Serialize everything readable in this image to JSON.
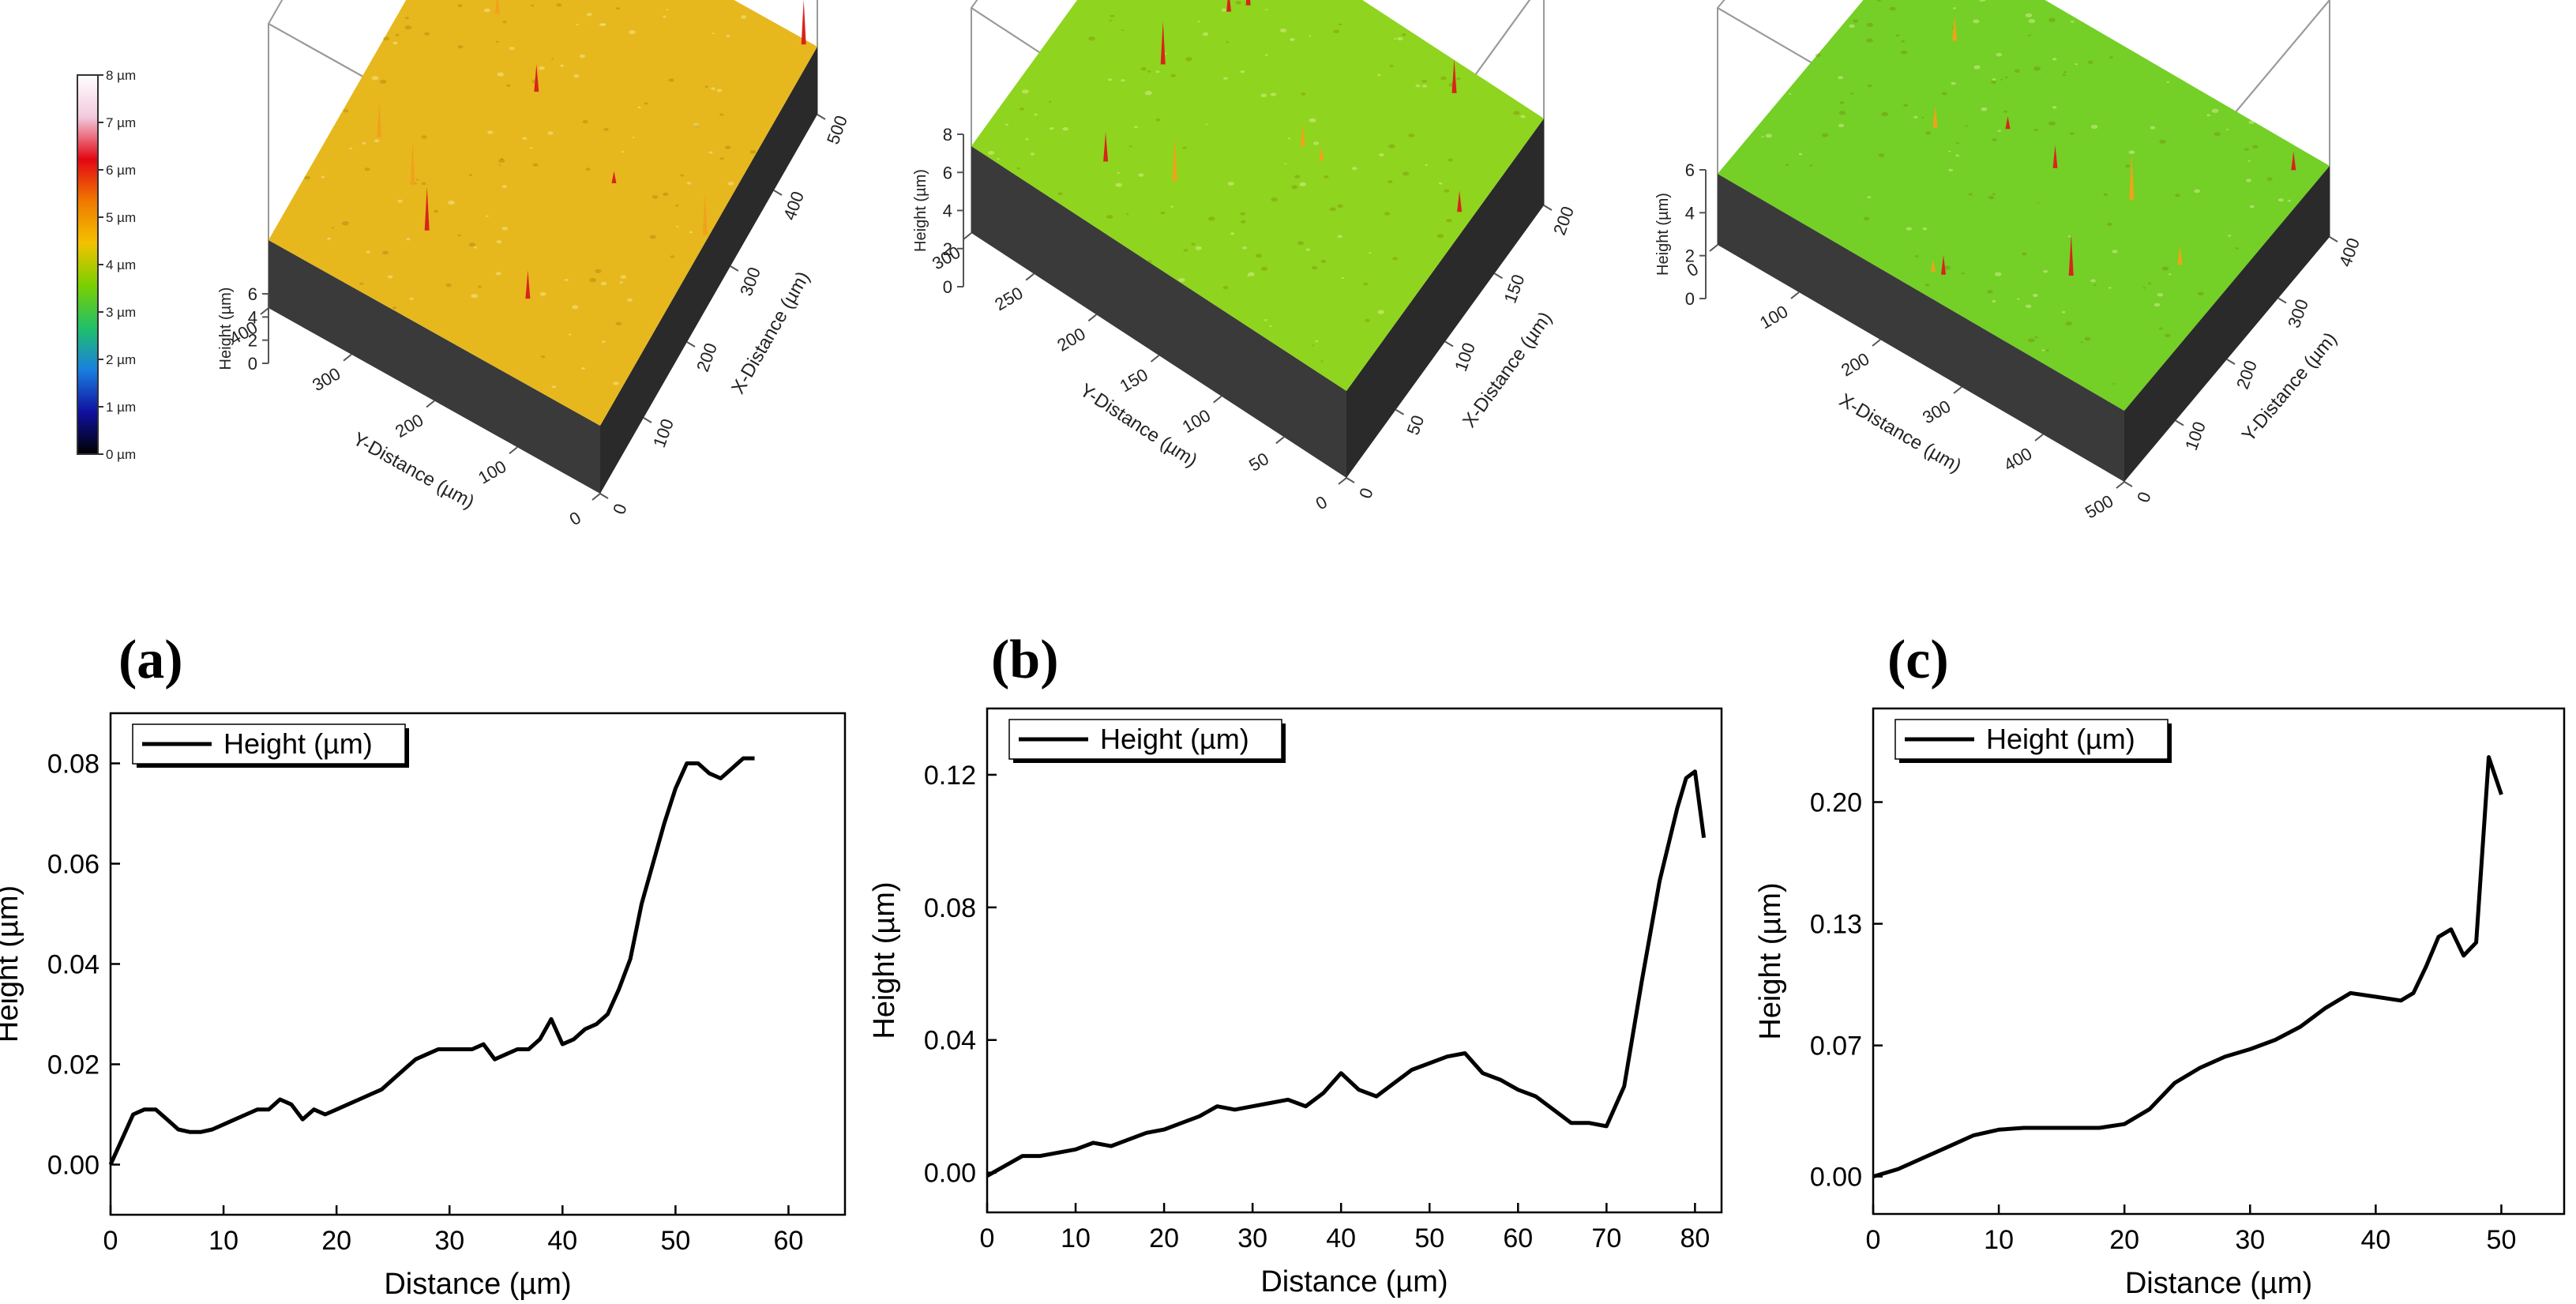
{
  "colorbar": {
    "ticks": [
      "8 µm",
      "7 µm",
      "6 µm",
      "5 µm",
      "4 µm",
      "3 µm",
      "2 µm",
      "1 µm",
      "0 µm"
    ],
    "colors": [
      "#ffffff",
      "#f2c9dc",
      "#e30613",
      "#f07a00",
      "#f2c200",
      "#7ad000",
      "#20c06a",
      "#1a7fe0",
      "#1010a0",
      "#000000"
    ]
  },
  "surfaces": [
    {
      "letter": "(a)",
      "surface_color": "#e6b81e",
      "height_label": "Height (µm)",
      "height_ticks": [
        "0",
        "2",
        "4",
        "6"
      ],
      "left_axis_label": "Y-Distance (µm)",
      "left_axis_ticks": [
        "400",
        "300",
        "200",
        "100",
        "0"
      ],
      "right_axis_label": "X-Distance (µm)",
      "right_axis_ticks": [
        "0",
        "100",
        "200",
        "300",
        "400",
        "500"
      ]
    },
    {
      "letter": "(b)",
      "surface_color": "#8fd41e",
      "height_label": "Height (µm)",
      "height_ticks": [
        "0",
        "2",
        "4",
        "6",
        "8"
      ],
      "left_axis_label": "Y-Distance (µm)",
      "left_axis_ticks": [
        "300",
        "250",
        "200",
        "150",
        "100",
        "50",
        "0"
      ],
      "right_axis_label": "X-Distance (µm)",
      "right_axis_ticks": [
        "0",
        "50",
        "100",
        "150",
        "200"
      ]
    },
    {
      "letter": "(c)",
      "surface_color": "#74cf26",
      "height_label": "Height (µm)",
      "height_ticks": [
        "0",
        "2",
        "4",
        "6"
      ],
      "left_axis_label": "X-Distance (µm)",
      "left_axis_ticks": [
        "0",
        "100",
        "200",
        "300",
        "400",
        "500"
      ],
      "right_axis_label": "Y-Distance (µm)",
      "right_axis_ticks": [
        "0",
        "100",
        "200",
        "300",
        "400"
      ]
    }
  ],
  "chart_data": [
    {
      "type": "line",
      "xlabel": "Distance (µm)",
      "ylabel": "Height (µm)",
      "xlim": [
        0,
        65
      ],
      "ylim": [
        -0.01,
        0.09
      ],
      "xticks": [
        0,
        10,
        20,
        30,
        40,
        50,
        60
      ],
      "xtick_labels": [
        "0",
        "10",
        "20",
        "30",
        "40",
        "50",
        "60"
      ],
      "yticks": [
        0.0,
        0.02,
        0.04,
        0.06,
        0.08
      ],
      "ytick_labels": [
        "0.00",
        "0.02",
        "0.04",
        "0.06",
        "0.08"
      ],
      "legend": "top-left",
      "series": [
        {
          "name": "Height (µm)",
          "x": [
            0,
            1,
            2,
            3,
            4,
            5,
            6,
            7,
            8,
            9,
            10,
            11,
            12,
            13,
            14,
            15,
            16,
            17,
            18,
            19,
            20,
            21,
            22,
            23,
            24,
            25,
            26,
            27,
            28,
            29,
            30,
            31,
            32,
            33,
            34,
            35,
            36,
            37,
            38,
            39,
            40,
            41,
            42,
            43,
            44,
            45,
            46,
            47,
            48,
            49,
            50,
            51,
            52,
            53,
            54,
            55,
            56,
            57
          ],
          "y": [
            0.0,
            0.005,
            0.01,
            0.011,
            0.011,
            0.009,
            0.007,
            0.0065,
            0.0065,
            0.007,
            0.008,
            0.009,
            0.01,
            0.011,
            0.011,
            0.013,
            0.012,
            0.009,
            0.011,
            0.01,
            0.011,
            0.012,
            0.013,
            0.014,
            0.015,
            0.017,
            0.019,
            0.021,
            0.022,
            0.023,
            0.023,
            0.023,
            0.023,
            0.024,
            0.021,
            0.022,
            0.023,
            0.023,
            0.025,
            0.029,
            0.024,
            0.025,
            0.027,
            0.028,
            0.03,
            0.035,
            0.041,
            0.052,
            0.06,
            0.068,
            0.075,
            0.08,
            0.08,
            0.078,
            0.077,
            0.079,
            0.081,
            0.081
          ]
        }
      ]
    },
    {
      "type": "line",
      "xlabel": "Distance (µm)",
      "ylabel": "Height (µm)",
      "xlim": [
        0,
        83
      ],
      "ylim": [
        -0.012,
        0.14
      ],
      "xticks": [
        0,
        10,
        20,
        30,
        40,
        50,
        60,
        70,
        80
      ],
      "xtick_labels": [
        "0",
        "10",
        "20",
        "30",
        "40",
        "50",
        "60",
        "70",
        "80"
      ],
      "yticks": [
        0.0,
        0.04,
        0.08,
        0.12
      ],
      "ytick_labels": [
        "0.00",
        "0.04",
        "0.08",
        "0.12"
      ],
      "legend": "top-left",
      "series": [
        {
          "name": "Height (µm)",
          "x": [
            0,
            2,
            4,
            6,
            8,
            10,
            12,
            14,
            16,
            18,
            20,
            22,
            24,
            26,
            28,
            30,
            32,
            34,
            36,
            38,
            40,
            42,
            44,
            46,
            48,
            50,
            52,
            54,
            56,
            58,
            60,
            62,
            64,
            66,
            68,
            70,
            72,
            74,
            76,
            78,
            79,
            80,
            81
          ],
          "y": [
            -0.001,
            0.002,
            0.005,
            0.005,
            0.006,
            0.007,
            0.009,
            0.008,
            0.01,
            0.012,
            0.013,
            0.015,
            0.017,
            0.02,
            0.019,
            0.02,
            0.021,
            0.022,
            0.02,
            0.024,
            0.03,
            0.025,
            0.023,
            0.027,
            0.031,
            0.033,
            0.035,
            0.036,
            0.03,
            0.028,
            0.025,
            0.023,
            0.019,
            0.015,
            0.015,
            0.014,
            0.026,
            0.058,
            0.088,
            0.11,
            0.119,
            0.121,
            0.101
          ]
        }
      ]
    },
    {
      "type": "line",
      "xlabel": "Distance (µm)",
      "ylabel": "Height (µm)",
      "xlim": [
        0,
        55
      ],
      "ylim": [
        -0.02,
        0.25
      ],
      "xticks": [
        0,
        10,
        20,
        30,
        40,
        50
      ],
      "xtick_labels": [
        "0",
        "10",
        "20",
        "30",
        "40",
        "50"
      ],
      "yticks": [
        0.0,
        0.07,
        0.135,
        0.2
      ],
      "ytick_labels": [
        "0.00",
        "0.07",
        "0.13",
        "0.20"
      ],
      "legend": "top-left",
      "series": [
        {
          "name": "Height (µm)",
          "x": [
            0,
            2,
            4,
            6,
            8,
            10,
            12,
            14,
            16,
            18,
            20,
            22,
            24,
            26,
            28,
            30,
            32,
            34,
            36,
            38,
            40,
            42,
            43,
            44,
            45,
            46,
            47,
            48,
            49,
            50
          ],
          "y": [
            0.0,
            0.004,
            0.01,
            0.016,
            0.022,
            0.025,
            0.026,
            0.026,
            0.026,
            0.026,
            0.028,
            0.036,
            0.05,
            0.058,
            0.064,
            0.068,
            0.073,
            0.08,
            0.09,
            0.098,
            0.096,
            0.094,
            0.098,
            0.112,
            0.128,
            0.132,
            0.118,
            0.125,
            0.224,
            0.204
          ]
        }
      ]
    }
  ]
}
